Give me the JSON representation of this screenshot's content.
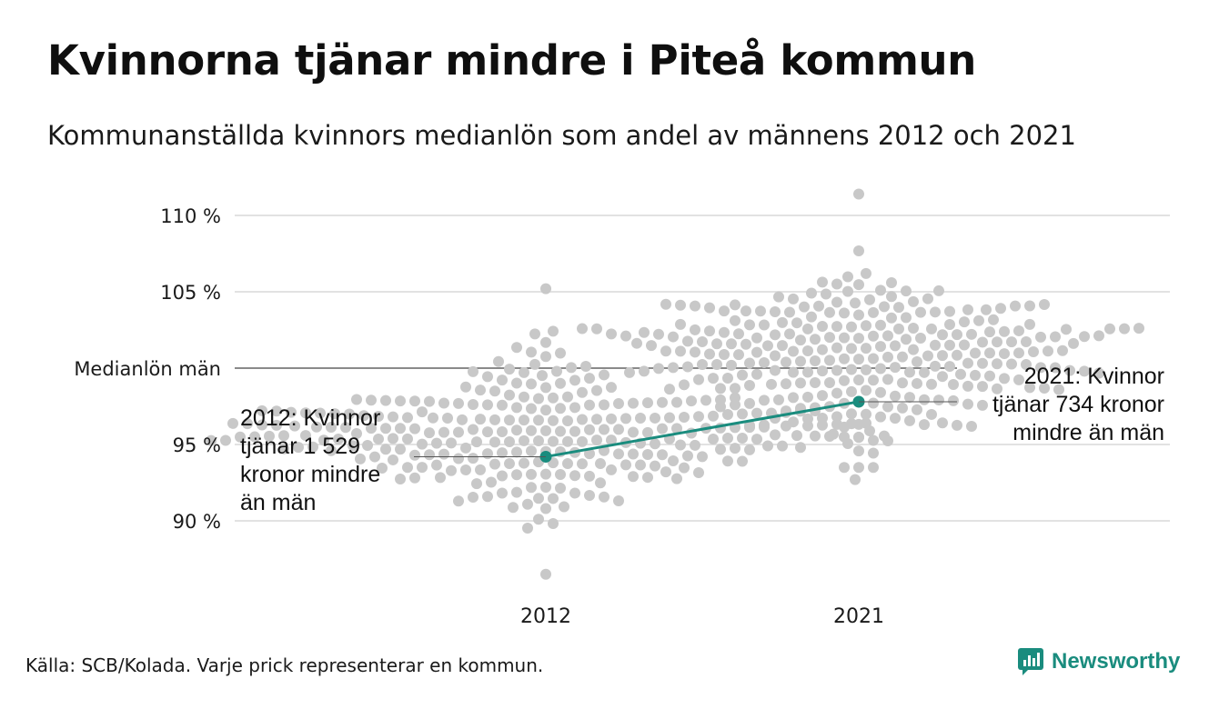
{
  "header": {
    "title": "Kvinnorna tjänar mindre i Piteå kommun",
    "subtitle": "Kommunanställda kvinnors medianlön som andel av männens 2012 och 2021"
  },
  "footer": {
    "source": "Källa: SCB/Kolada. Varje prick representerar en kommun.",
    "brand": "Newsworthy",
    "brand_icon": "newsworthy-logo-icon"
  },
  "chart_data": {
    "type": "scatter",
    "subtype": "beeswarm",
    "categories": [
      "2012",
      "2021"
    ],
    "y_tick_labels": [
      "110 %",
      "105 %",
      "Medianlön män",
      "95 %",
      "90 %"
    ],
    "y_ticks": [
      110,
      105,
      100,
      95,
      90
    ],
    "ylim": [
      85.5,
      111.5
    ],
    "grid": true,
    "reference_line": {
      "value": 100,
      "label": "Medianlön män"
    },
    "distributions": [
      {
        "category": "2012",
        "mean": 95.9,
        "sd": 2.3,
        "min": 86.5,
        "max": 105.2,
        "count": 290,
        "unit": "%"
      },
      {
        "category": "2021",
        "mean": 100.6,
        "sd": 2.6,
        "min": 92.7,
        "max": 111.4,
        "count": 290,
        "unit": "%"
      }
    ],
    "highlight": {
      "name": "Piteå",
      "values": [
        94.2,
        97.8
      ],
      "color": "#1a8c7e"
    },
    "annotations": [
      {
        "category": "2012",
        "value": 94.2,
        "side": "left",
        "lines": [
          "2012: Kvinnor",
          "tjänar 1 529",
          "kronor mindre",
          "än män"
        ]
      },
      {
        "category": "2021",
        "value": 97.8,
        "side": "right",
        "lines": [
          "2021: Kvinnor",
          "tjänar 734 kronor",
          "mindre än män"
        ]
      }
    ],
    "colors": {
      "dots": "#c8c8c8",
      "grid": "#e2e2e2",
      "reference": "#444444",
      "highlight": "#1a8c7e"
    }
  }
}
